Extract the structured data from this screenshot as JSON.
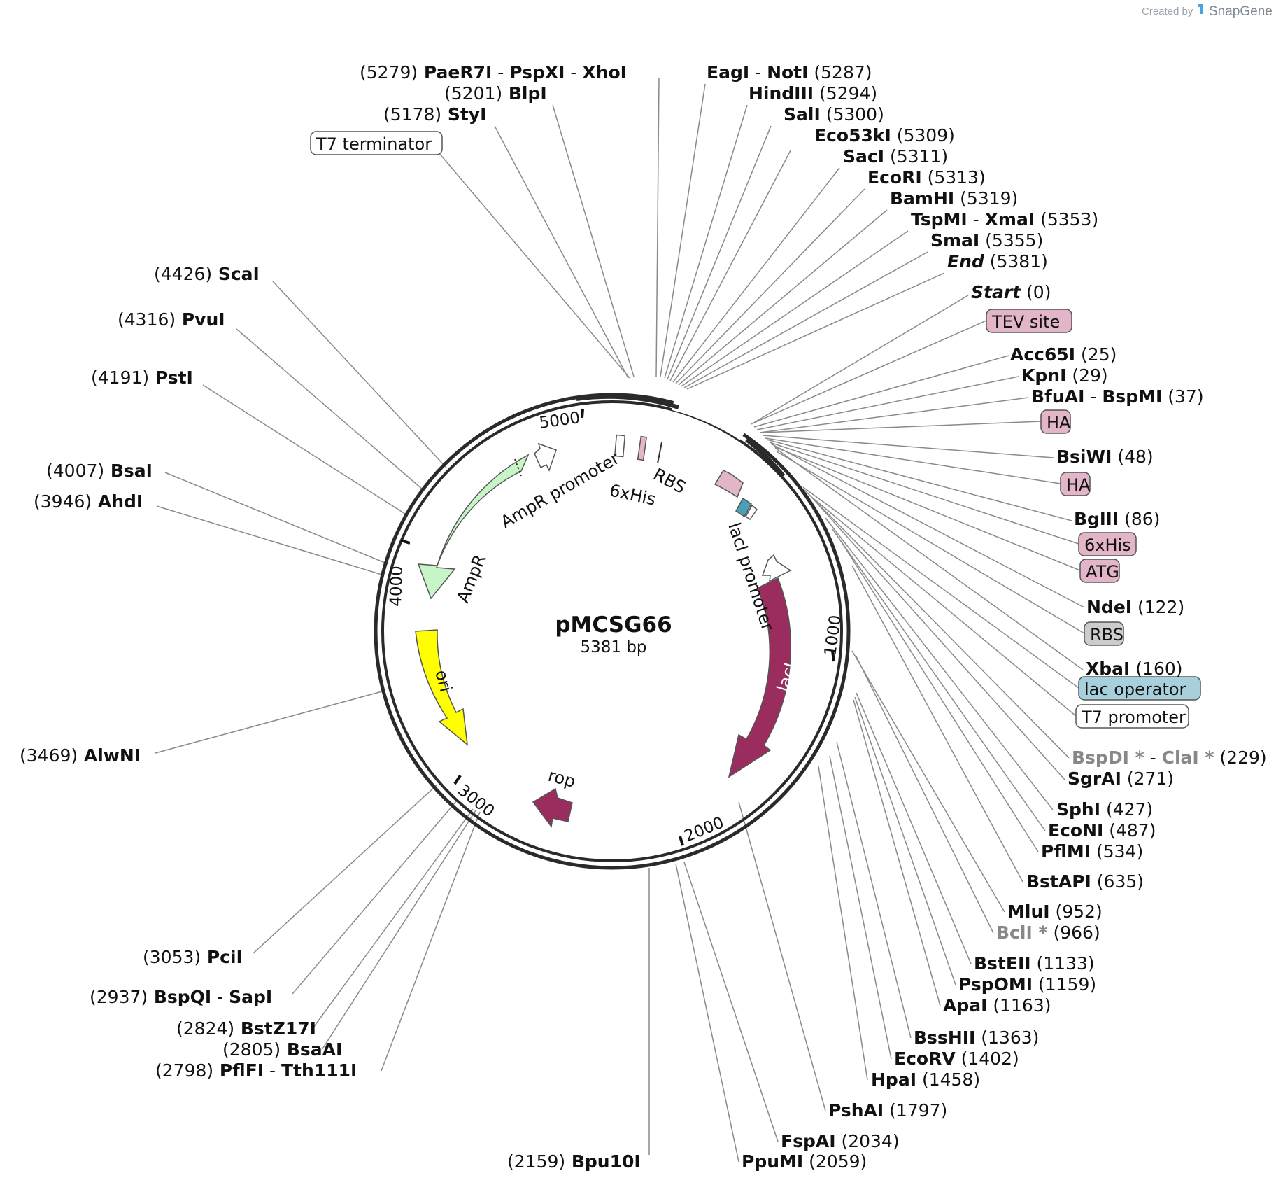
{
  "plasmid": {
    "name": "pMCSG66",
    "size_label": "5381 bp",
    "length_bp": 5381
  },
  "credit": {
    "prefix": "Created by",
    "brand": "SnapGene"
  },
  "tick_labels": [
    "1000",
    "2000",
    "3000",
    "4000",
    "5000"
  ],
  "features": [
    {
      "name": "AmpR",
      "color": "#c8f5c8"
    },
    {
      "name": "AmpR promoter",
      "color": "#ffffff"
    },
    {
      "name": "ori",
      "color": "#ffff00"
    },
    {
      "name": "rop",
      "color": "#9b2c5e"
    },
    {
      "name": "lacI",
      "color": "#9b2c5e"
    },
    {
      "name": "lacI promoter",
      "color": "#ffffff"
    },
    {
      "name": "RBS",
      "color": "#ffffff"
    },
    {
      "name": "6xHis",
      "color": "#e3b5c8"
    }
  ],
  "box_labels": [
    {
      "text": "T7 terminator",
      "color": "#ffffff"
    },
    {
      "text": "TEV site",
      "color": "#e3b5c8"
    },
    {
      "text": "HA",
      "color": "#e3b5c8"
    },
    {
      "text": "HA",
      "color": "#e3b5c8"
    },
    {
      "text": "6xHis",
      "color": "#e3b5c8"
    },
    {
      "text": "ATG",
      "color": "#e3b5c8"
    },
    {
      "text": "RBS",
      "color": "#cccccc"
    },
    {
      "text": "lac operator",
      "color": "#a8d0dc"
    },
    {
      "text": "T7 promoter",
      "color": "#ffffff"
    }
  ],
  "sites": [
    {
      "segments": [
        {
          "t": "(5279)"
        },
        {
          "t": "PaeR7I",
          "b": 1
        },
        {
          "t": " - "
        },
        {
          "t": "PspXI",
          "b": 1
        },
        {
          "t": " - "
        },
        {
          "t": "XhoI",
          "b": 1
        }
      ]
    },
    {
      "segments": [
        {
          "t": "(5201)"
        },
        {
          "t": "BlpI",
          "b": 1
        }
      ]
    },
    {
      "segments": [
        {
          "t": "(5178)"
        },
        {
          "t": "StyI",
          "b": 1
        }
      ]
    },
    {
      "segments": [
        {
          "t": "EagI",
          "b": 1
        },
        {
          "t": " - "
        },
        {
          "t": "NotI",
          "b": 1
        },
        {
          "t": "(5287)"
        }
      ]
    },
    {
      "segments": [
        {
          "t": "HindIII",
          "b": 1
        },
        {
          "t": "(5294)"
        }
      ]
    },
    {
      "segments": [
        {
          "t": "SalI",
          "b": 1
        },
        {
          "t": "(5300)"
        }
      ]
    },
    {
      "segments": [
        {
          "t": "Eco53kI",
          "b": 1
        },
        {
          "t": "(5309)"
        }
      ]
    },
    {
      "segments": [
        {
          "t": "SacI",
          "b": 1
        },
        {
          "t": "(5311)"
        }
      ]
    },
    {
      "segments": [
        {
          "t": "EcoRI",
          "b": 1
        },
        {
          "t": "(5313)"
        }
      ]
    },
    {
      "segments": [
        {
          "t": "BamHI",
          "b": 1
        },
        {
          "t": "(5319)"
        }
      ]
    },
    {
      "segments": [
        {
          "t": "TspMI",
          "b": 1
        },
        {
          "t": " - "
        },
        {
          "t": "XmaI",
          "b": 1
        },
        {
          "t": "(5353)"
        }
      ]
    },
    {
      "segments": [
        {
          "t": "SmaI",
          "b": 1
        },
        {
          "t": "(5355)"
        }
      ]
    },
    {
      "segments": [
        {
          "t": "End",
          "b": 1,
          "i": 1
        },
        {
          "t": "(5381)"
        }
      ]
    },
    {
      "segments": [
        {
          "t": "Start",
          "b": 1,
          "i": 1
        },
        {
          "t": "(0)"
        }
      ]
    },
    {
      "segments": [
        {
          "t": "Acc65I",
          "b": 1
        },
        {
          "t": "(25)"
        }
      ]
    },
    {
      "segments": [
        {
          "t": "KpnI",
          "b": 1
        },
        {
          "t": "(29)"
        }
      ]
    },
    {
      "segments": [
        {
          "t": "BfuAI",
          "b": 1
        },
        {
          "t": " - "
        },
        {
          "t": "BspMI",
          "b": 1
        },
        {
          "t": "(37)"
        }
      ]
    },
    {
      "segments": [
        {
          "t": "BsiWI",
          "b": 1
        },
        {
          "t": "(48)"
        }
      ]
    },
    {
      "segments": [
        {
          "t": "BglII",
          "b": 1
        },
        {
          "t": "(86)"
        }
      ]
    },
    {
      "segments": [
        {
          "t": "NdeI",
          "b": 1
        },
        {
          "t": "(122)"
        }
      ]
    },
    {
      "segments": [
        {
          "t": "XbaI",
          "b": 1
        },
        {
          "t": "(160)"
        }
      ]
    },
    {
      "segments": [
        {
          "t": "BspDI *",
          "b": 1,
          "g": 1
        },
        {
          "t": " - "
        },
        {
          "t": "ClaI *",
          "b": 1,
          "g": 1
        },
        {
          "t": "(229)"
        }
      ]
    },
    {
      "segments": [
        {
          "t": "SgrAI",
          "b": 1
        },
        {
          "t": "(271)"
        }
      ]
    },
    {
      "segments": [
        {
          "t": "SphI",
          "b": 1
        },
        {
          "t": "(427)"
        }
      ]
    },
    {
      "segments": [
        {
          "t": "EcoNI",
          "b": 1
        },
        {
          "t": "(487)"
        }
      ]
    },
    {
      "segments": [
        {
          "t": "PflMI",
          "b": 1
        },
        {
          "t": "(534)"
        }
      ]
    },
    {
      "segments": [
        {
          "t": "BstAPI",
          "b": 1
        },
        {
          "t": "(635)"
        }
      ]
    },
    {
      "segments": [
        {
          "t": "MluI",
          "b": 1
        },
        {
          "t": "(952)"
        }
      ]
    },
    {
      "segments": [
        {
          "t": "BclI *",
          "b": 1,
          "g": 1
        },
        {
          "t": "(966)"
        }
      ]
    },
    {
      "segments": [
        {
          "t": "BstEII",
          "b": 1
        },
        {
          "t": "(1133)"
        }
      ]
    },
    {
      "segments": [
        {
          "t": "PspOMI",
          "b": 1
        },
        {
          "t": "(1159)"
        }
      ]
    },
    {
      "segments": [
        {
          "t": "ApaI",
          "b": 1
        },
        {
          "t": "(1163)"
        }
      ]
    },
    {
      "segments": [
        {
          "t": "BssHII",
          "b": 1
        },
        {
          "t": "(1363)"
        }
      ]
    },
    {
      "segments": [
        {
          "t": "EcoRV",
          "b": 1
        },
        {
          "t": "(1402)"
        }
      ]
    },
    {
      "segments": [
        {
          "t": "HpaI",
          "b": 1
        },
        {
          "t": "(1458)"
        }
      ]
    },
    {
      "segments": [
        {
          "t": "PshAI",
          "b": 1
        },
        {
          "t": "(1797)"
        }
      ]
    },
    {
      "segments": [
        {
          "t": "FspAI",
          "b": 1
        },
        {
          "t": "(2034)"
        }
      ]
    },
    {
      "segments": [
        {
          "t": "PpuMI",
          "b": 1
        },
        {
          "t": "(2059)"
        }
      ]
    },
    {
      "segments": [
        {
          "t": "(2159)"
        },
        {
          "t": "Bpu10I",
          "b": 1
        }
      ]
    },
    {
      "segments": [
        {
          "t": "(3053)"
        },
        {
          "t": "PciI",
          "b": 1
        }
      ]
    },
    {
      "segments": [
        {
          "t": "(2937)"
        },
        {
          "t": "BspQI",
          "b": 1
        },
        {
          "t": " - "
        },
        {
          "t": "SapI",
          "b": 1
        }
      ]
    },
    {
      "segments": [
        {
          "t": "(2824)"
        },
        {
          "t": "BstZ17I",
          "b": 1
        }
      ]
    },
    {
      "segments": [
        {
          "t": "(2805)"
        },
        {
          "t": "BsaAI",
          "b": 1
        }
      ]
    },
    {
      "segments": [
        {
          "t": "(2798)"
        },
        {
          "t": "PflFI",
          "b": 1
        },
        {
          "t": " - "
        },
        {
          "t": "Tth111I",
          "b": 1
        }
      ]
    },
    {
      "segments": [
        {
          "t": "(4426)"
        },
        {
          "t": "ScaI",
          "b": 1
        }
      ]
    },
    {
      "segments": [
        {
          "t": "(4316)"
        },
        {
          "t": "PvuI",
          "b": 1
        }
      ]
    },
    {
      "segments": [
        {
          "t": "(4191)"
        },
        {
          "t": "PstI",
          "b": 1
        }
      ]
    },
    {
      "segments": [
        {
          "t": "(4007)"
        },
        {
          "t": "BsaI",
          "b": 1
        }
      ]
    },
    {
      "segments": [
        {
          "t": "(3946)"
        },
        {
          "t": "AhdI",
          "b": 1
        }
      ]
    },
    {
      "segments": [
        {
          "t": "(3469)"
        },
        {
          "t": "AlwNI",
          "b": 1
        }
      ]
    }
  ]
}
